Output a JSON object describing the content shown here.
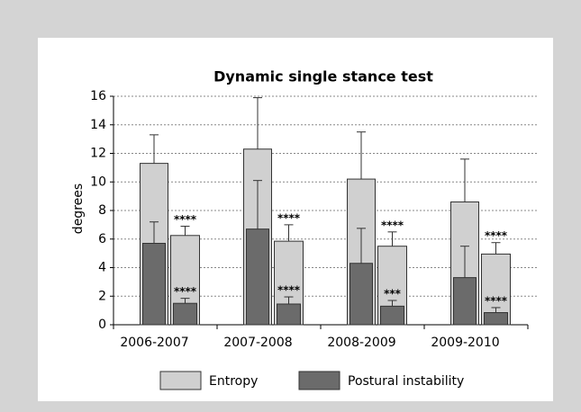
{
  "chart_data": {
    "type": "bar",
    "title": "Dynamic single stance test",
    "y_label": "degrees",
    "categories": [
      "2006-2007",
      "2007-2008",
      "2008-2009",
      "2009-2010"
    ],
    "series": [
      {
        "name": "Entropy",
        "color": "#d0d0d0",
        "values": [
          [
            11.3,
            6.25
          ],
          [
            12.3,
            5.85
          ],
          [
            10.2,
            5.5
          ],
          [
            8.6,
            4.95
          ]
        ],
        "errors": [
          [
            2.0,
            0.65
          ],
          [
            3.6,
            1.15
          ],
          [
            3.3,
            1.0
          ],
          [
            3.0,
            0.8
          ]
        ],
        "stars": [
          "****",
          "****",
          "****",
          "****"
        ]
      },
      {
        "name": "Postural instability",
        "color": "#6b6b6b",
        "values": [
          [
            5.7,
            1.5
          ],
          [
            6.7,
            1.45
          ],
          [
            4.3,
            1.3
          ],
          [
            3.3,
            0.85
          ]
        ],
        "errors": [
          [
            1.5,
            0.35
          ],
          [
            3.4,
            0.5
          ],
          [
            2.45,
            0.4
          ],
          [
            2.2,
            0.35
          ]
        ],
        "stars": [
          "****",
          "****",
          "***",
          "****"
        ]
      }
    ],
    "ylim": [
      0,
      16
    ],
    "yticks": [
      0,
      2,
      4,
      6,
      8,
      10,
      12,
      14,
      16
    ],
    "grid": true
  }
}
